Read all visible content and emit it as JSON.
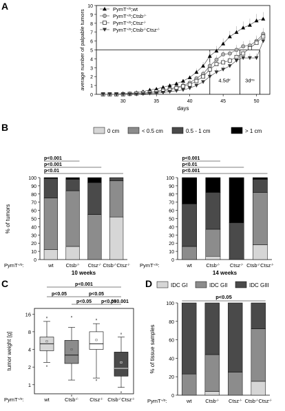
{
  "panels": {
    "A": "A",
    "B": "B",
    "C": "C",
    "D": "D"
  },
  "colors": {
    "size_0cm": "#d6d6d6",
    "size_lt05": "#8c8c8c",
    "size_05_1": "#4a4a4a",
    "size_gt1": "#000000",
    "idc_gi": "#d6d6d6",
    "idc_gii": "#8c8c8c",
    "idc_giii": "#4a4a4a"
  },
  "group_prefix": "PymT",
  "group_prefix_sup": "+/0",
  "group_prefix_colon": "PymT+/0:",
  "chart_data": [
    {
      "panel": "A",
      "type": "line",
      "xlabel": "days",
      "ylabel": "average number of palpable tumors",
      "xlim": [
        26,
        52
      ],
      "ylim": [
        0,
        10
      ],
      "xticks": [
        30,
        35,
        40,
        45,
        50
      ],
      "yticks": [
        0,
        1,
        2,
        3,
        4,
        5,
        6,
        7,
        8,
        9,
        10
      ],
      "legend_position": "top-left",
      "legend": [
        {
          "main": "PymT",
          "sup": "+/0",
          "tail": ";wt",
          "marker": "triangle-up"
        },
        {
          "main": "PymT",
          "sup": "+/0",
          "tail": ";Ctsb",
          "sup2": "-/-",
          "marker": "circle"
        },
        {
          "main": "PymT",
          "sup": "+/0",
          "tail": ";Ctsz",
          "sup2": "-/-",
          "marker": "square"
        },
        {
          "main": "PymT",
          "sup": "+/0",
          "tail": ";Ctsb",
          "sup2": "-/-",
          "tail2": "Ctsz",
          "sup3": "-/-",
          "marker": "triangle-down"
        }
      ],
      "x": [
        27,
        28,
        29,
        30,
        31,
        32,
        33,
        34,
        35,
        36,
        37,
        38,
        39,
        40,
        41,
        42,
        43,
        44,
        45,
        46,
        47,
        48,
        49,
        50,
        51
      ],
      "series": [
        {
          "name": "PymT+/0;wt",
          "marker": "triangle-up",
          "values": [
            0,
            0,
            0,
            0.1,
            0.1,
            0.2,
            0.3,
            0.5,
            0.6,
            0.8,
            1.0,
            1.2,
            1.5,
            1.9,
            2.5,
            3.2,
            4.3,
            4.9,
            5.7,
            6.5,
            7.0,
            7.5,
            7.8,
            8.3,
            8.5
          ]
        },
        {
          "name": "PymT+/0;Ctsb-/-",
          "marker": "circle",
          "values": [
            0,
            0,
            0,
            0,
            0.05,
            0.1,
            0.15,
            0.2,
            0.3,
            0.5,
            0.6,
            0.8,
            1.0,
            1.3,
            1.8,
            2.3,
            3.2,
            3.9,
            4.5,
            4.6,
            5.0,
            5.4,
            5.5,
            6.0,
            6.8
          ]
        },
        {
          "name": "PymT+/0;Ctsz-/-",
          "marker": "square",
          "values": [
            0,
            0,
            0,
            0,
            0.05,
            0.1,
            0.15,
            0.2,
            0.3,
            0.4,
            0.5,
            0.7,
            0.9,
            1.1,
            1.5,
            2.0,
            2.8,
            3.4,
            3.6,
            3.8,
            4.2,
            4.6,
            5.2,
            5.8,
            6.5
          ]
        },
        {
          "name": "PymT+/0;Ctsb-/-Ctsz-/-",
          "marker": "triangle-down",
          "values": [
            0,
            0,
            0,
            0,
            0,
            0,
            0.05,
            0.1,
            0.15,
            0.2,
            0.3,
            0.4,
            0.5,
            0.7,
            1.0,
            1.4,
            2.0,
            2.5,
            2.8,
            3.2,
            3.8,
            4.1,
            4.1,
            4.1,
            6.0
          ]
        }
      ],
      "reference_line_y": 5,
      "annotations": [
        {
          "label": "4.5d",
          "sup": "#"
        },
        {
          "label": "3d",
          "sup": "ns"
        }
      ]
    },
    {
      "panel": "B-10",
      "type": "bar",
      "stacked": true,
      "ylabel": "% of tumors",
      "ylim": [
        0,
        100
      ],
      "yticks": [
        0,
        10,
        20,
        30,
        40,
        50,
        60,
        70,
        80,
        90,
        100
      ],
      "xlabel": "10 weeks",
      "legend": [
        "0 cm",
        "< 0.5 cm",
        "0.5 - 1 cm",
        "> 1 cm"
      ],
      "legend_position": "top",
      "categories": [
        "wt",
        "Ctsb-/-",
        "Ctsz-/-",
        "Ctsb-/-Ctsz-/-"
      ],
      "series": [
        {
          "name": "0 cm",
          "values": [
            12,
            16,
            0,
            52
          ]
        },
        {
          "name": "< 0.5 cm",
          "values": [
            63,
            68,
            55,
            44
          ]
        },
        {
          "name": "0.5 - 1 cm",
          "values": [
            24,
            14,
            39,
            4
          ]
        },
        {
          "name": "> 1 cm",
          "values": [
            1,
            2,
            6,
            0
          ]
        }
      ],
      "significance": [
        "p<0.001",
        "p<0.001",
        "p<0.01"
      ]
    },
    {
      "panel": "B-14",
      "type": "bar",
      "stacked": true,
      "ylim": [
        0,
        100
      ],
      "yticks": [
        0,
        10,
        20,
        30,
        40,
        50,
        60,
        70,
        80,
        90,
        100
      ],
      "xlabel": "14 weeks",
      "categories": [
        "wt",
        "Ctsb-/-",
        "Ctsz-/-",
        "Ctsb-/-Ctsz-/-"
      ],
      "series": [
        {
          "name": "0 cm",
          "values": [
            0,
            4,
            0,
            18
          ]
        },
        {
          "name": "< 0.5 cm",
          "values": [
            16,
            33,
            0,
            64
          ]
        },
        {
          "name": "0.5 - 1 cm",
          "values": [
            52,
            45,
            45,
            16
          ]
        },
        {
          "name": "> 1 cm",
          "values": [
            32,
            18,
            55,
            2
          ]
        }
      ],
      "significance": [
        "p<0.001",
        "p<0.01",
        "p<0.001"
      ]
    },
    {
      "panel": "C",
      "type": "box",
      "ylabel": "tumor weight [g]",
      "yscale": "log2",
      "ylim": [
        0.7,
        20
      ],
      "yticks": [
        1,
        2,
        4,
        8,
        16
      ],
      "categories": [
        "wt",
        "Ctsb-/-",
        "Ctsz-/-",
        "Ctsb-/-Ctsz-/-"
      ],
      "boxes": [
        {
          "whisker_low": 2.4,
          "q1": 3.8,
          "median": 5.0,
          "q3": 6.5,
          "whisker_high": 12,
          "mean": 5.5,
          "outliers": [
            2.1,
            14
          ],
          "fill": "#d6d6d6"
        },
        {
          "whisker_low": 1.2,
          "q1": 2.3,
          "median": 3.2,
          "q3": 5.7,
          "whisker_high": 9.5,
          "mean": 4.0,
          "outliers": [
            0.65,
            14.5
          ],
          "fill": "#8c8c8c"
        },
        {
          "whisker_low": 1.3,
          "q1": 4.0,
          "median": 5.0,
          "q3": 8.0,
          "whisker_high": 11,
          "mean": 5.8,
          "outliers": [
            1.2,
            13
          ],
          "fill": "#ffffff"
        },
        {
          "whisker_low": 0.9,
          "q1": 1.4,
          "median": 1.9,
          "q3": 3.6,
          "whisker_high": 6.5,
          "mean": 2.4,
          "outliers": [
            0.75,
            7.5
          ],
          "fill": "#4a4a4a"
        }
      ],
      "significance": [
        "p<0.001",
        "p<0.05",
        "p<0.05",
        "p<0.05",
        "p<0.05",
        "p<0.001"
      ]
    },
    {
      "panel": "D",
      "type": "bar",
      "stacked": true,
      "ylabel": "% of tissue samples",
      "ylim": [
        0,
        100
      ],
      "yticks": [
        0,
        20,
        40,
        60,
        80,
        100
      ],
      "legend": [
        "IDC GI",
        "IDC GII",
        "IDC GIII"
      ],
      "legend_position": "top",
      "categories": [
        "wt",
        "Ctsb-/-",
        "Ctsz-/-",
        "Ctsb-/-Ctsz-/-"
      ],
      "series": [
        {
          "name": "IDC GI",
          "values": [
            0,
            4,
            0,
            15
          ]
        },
        {
          "name": "IDC GII",
          "values": [
            23,
            40,
            25,
            57
          ]
        },
        {
          "name": "IDC GIII",
          "values": [
            77,
            56,
            75,
            28
          ]
        }
      ],
      "significance": [
        "p<0.05"
      ]
    }
  ]
}
